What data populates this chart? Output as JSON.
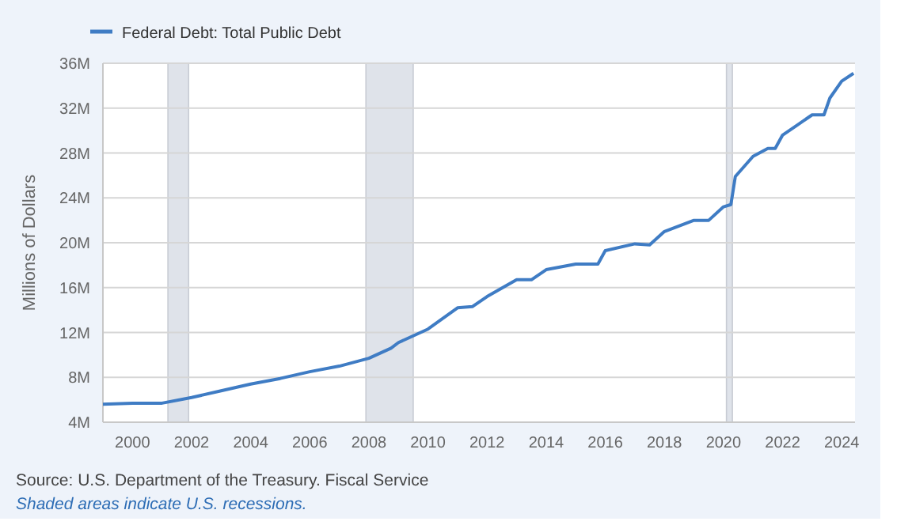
{
  "chart_data": {
    "type": "line",
    "ylabel": "Millions of Dollars",
    "xlim": [
      1999,
      2024.45
    ],
    "xticks": [
      {
        "value": 2000,
        "label": "2000"
      },
      {
        "value": 2002,
        "label": "2002"
      },
      {
        "value": 2004,
        "label": "2004"
      },
      {
        "value": 2006,
        "label": "2006"
      },
      {
        "value": 2008,
        "label": "2008"
      },
      {
        "value": 2010,
        "label": "2010"
      },
      {
        "value": 2012,
        "label": "2012"
      },
      {
        "value": 2014,
        "label": "2014"
      },
      {
        "value": 2016,
        "label": "2016"
      },
      {
        "value": 2018,
        "label": "2018"
      },
      {
        "value": 2020,
        "label": "2020"
      },
      {
        "value": 2022,
        "label": "2022"
      },
      {
        "value": 2024,
        "label": "2024"
      }
    ],
    "ylim": [
      4,
      36
    ],
    "yticks": [
      {
        "value": 4,
        "label": "4M"
      },
      {
        "value": 8,
        "label": "8M"
      },
      {
        "value": 12,
        "label": "12M"
      },
      {
        "value": 16,
        "label": "16M"
      },
      {
        "value": 20,
        "label": "20M"
      },
      {
        "value": 24,
        "label": "24M"
      },
      {
        "value": 28,
        "label": "28M"
      },
      {
        "value": 32,
        "label": "32M"
      },
      {
        "value": 36,
        "label": "36M"
      }
    ],
    "grid": "y",
    "legend": "top left",
    "x": [
      1999,
      2000,
      2001,
      2002,
      2003,
      2004,
      2005,
      2006,
      2007,
      2008,
      2008.75,
      2009,
      2010,
      2011,
      2011.5,
      2012,
      2013,
      2013.5,
      2014,
      2015,
      2015.75,
      2016,
      2017,
      2017.5,
      2018,
      2019,
      2019.5,
      2020,
      2020.25,
      2020.4,
      2021,
      2021.5,
      2021.75,
      2022,
      2022.5,
      2023,
      2023.4,
      2023.6,
      2024,
      2024.4
    ],
    "series": [
      {
        "name": "Federal Debt: Total Public Debt",
        "color": "#3f7cc4",
        "values": [
          5.6,
          5.7,
          5.7,
          6.2,
          6.8,
          7.4,
          7.9,
          8.5,
          9.0,
          9.7,
          10.6,
          11.1,
          12.3,
          14.2,
          14.3,
          15.2,
          16.7,
          16.7,
          17.6,
          18.1,
          18.1,
          19.3,
          19.9,
          19.8,
          21.0,
          22.0,
          22.0,
          23.2,
          23.4,
          25.9,
          27.7,
          28.4,
          28.4,
          29.6,
          30.5,
          31.4,
          31.4,
          32.9,
          34.4,
          35.1
        ]
      }
    ],
    "bands": [
      {
        "axis": "x",
        "from": 2001.2,
        "to": 2001.9,
        "color": "#dfe3ea"
      },
      {
        "axis": "x",
        "from": 2007.9,
        "to": 2009.5,
        "color": "#dfe3ea"
      },
      {
        "axis": "x",
        "from": 2020.1,
        "to": 2020.3,
        "color": "#dfe3ea"
      }
    ],
    "annotations": [
      "Source: U.S. Department of the Treasury. Fiscal Service",
      "Shaded areas indicate U.S. recessions."
    ]
  }
}
